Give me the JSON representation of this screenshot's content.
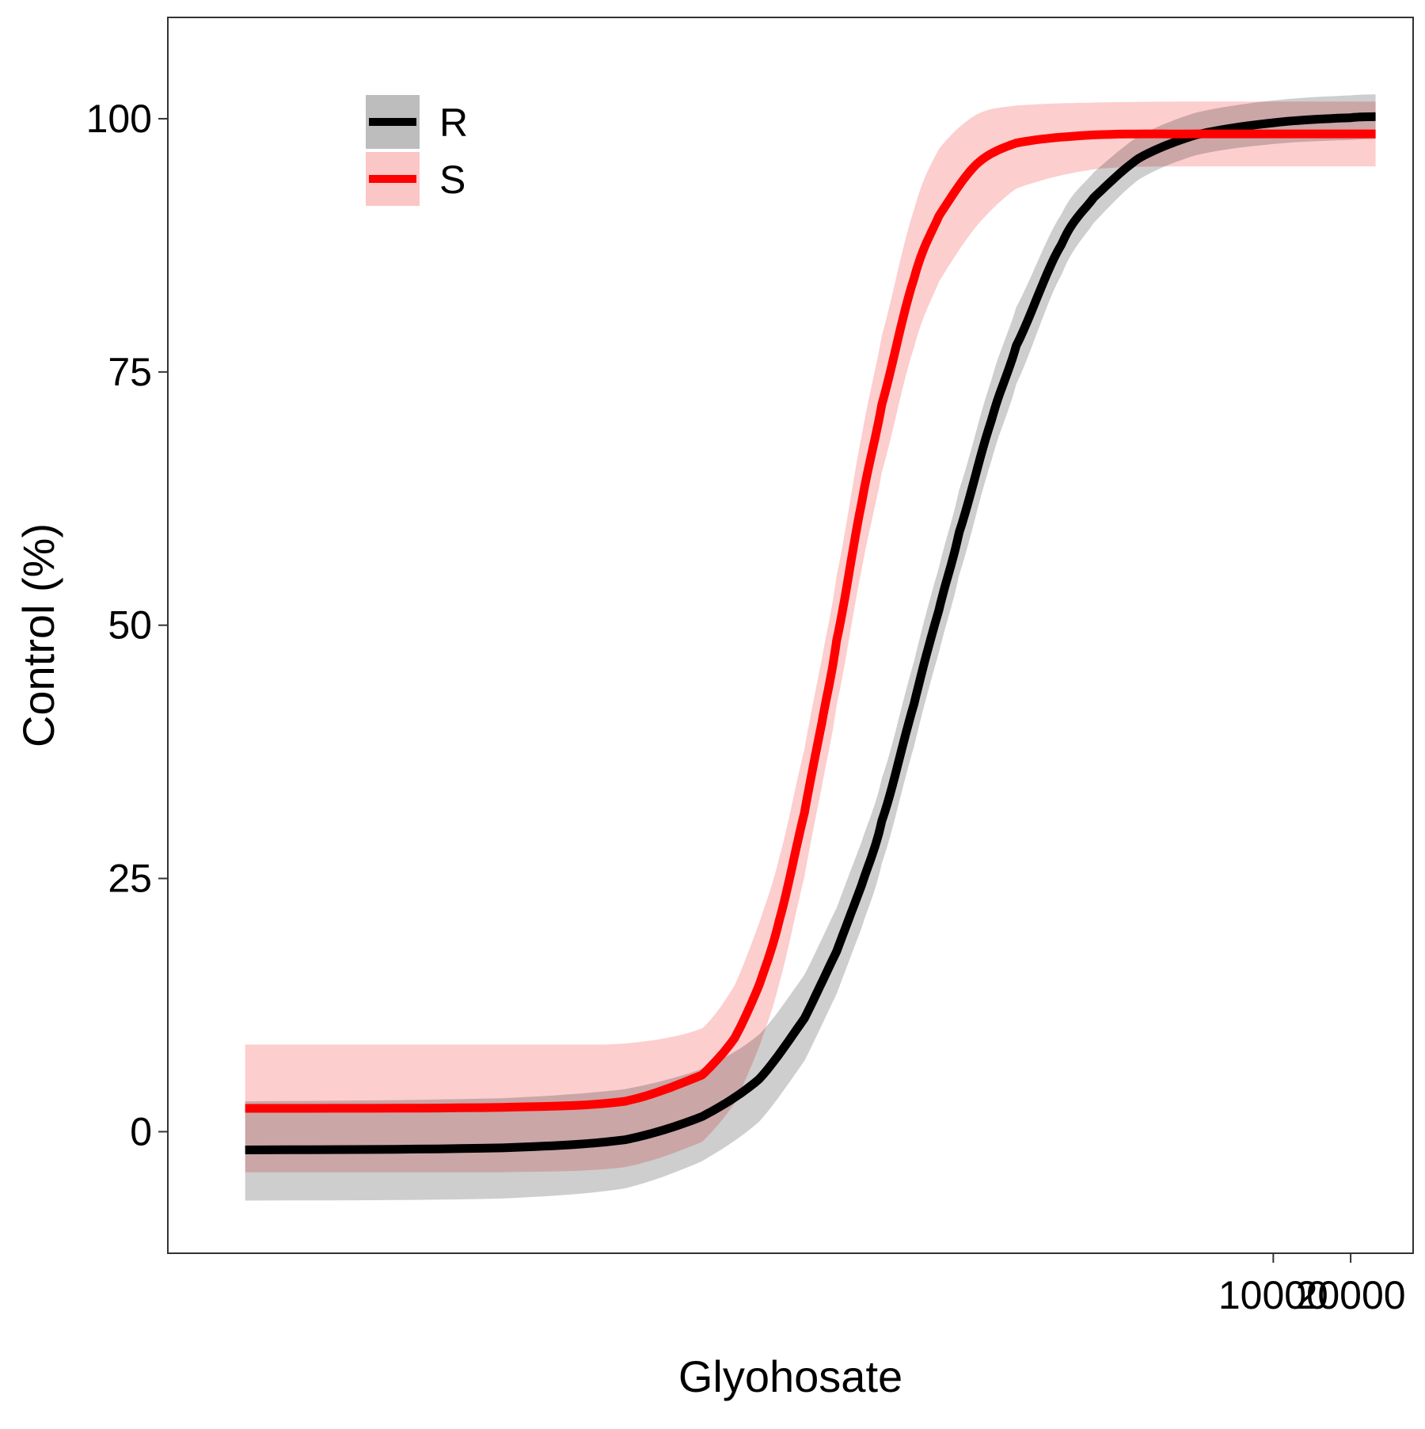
{
  "chart_data": {
    "type": "line",
    "title": "",
    "xlabel": "Glyohosate",
    "ylabel": "Control (%)",
    "x_scale": "log",
    "xlim": [
      0.5,
      35000
    ],
    "ylim": [
      -12,
      110
    ],
    "x_ticks": [
      10000,
      20000
    ],
    "x_tick_labels": [
      "10000",
      "20000"
    ],
    "y_ticks": [
      0,
      25,
      50,
      75,
      100
    ],
    "y_tick_labels": [
      "0",
      "25",
      "50",
      "75",
      "100"
    ],
    "grid": false,
    "legend_position": "top-left",
    "series": [
      {
        "name": "R",
        "color": "#000000",
        "band_color": "#bdbdbd",
        "x": [
          1,
          10,
          30,
          60,
          100,
          150,
          200,
          250,
          300,
          400,
          500,
          600,
          800,
          1000,
          1500,
          2000,
          3000,
          5000,
          10000,
          20000,
          25000
        ],
        "y": [
          -1.8,
          -1.6,
          -0.8,
          1.5,
          5.2,
          11.2,
          17.8,
          24.3,
          30.7,
          42.2,
          51.5,
          59.2,
          70.2,
          77.6,
          87.6,
          92.2,
          96.1,
          98.4,
          99.6,
          100.1,
          100.2
        ],
        "lower": [
          -6.8,
          -6.6,
          -5.6,
          -2.9,
          1.0,
          7.0,
          13.6,
          20.1,
          26.5,
          38.0,
          47.3,
          55.0,
          66.2,
          73.8,
          84.6,
          89.7,
          94.0,
          96.4,
          97.5,
          97.9,
          98.0
        ],
        "upper": [
          3.0,
          3.3,
          4.2,
          6.2,
          9.6,
          15.5,
          22.1,
          28.6,
          34.9,
          46.4,
          55.7,
          63.4,
          74.2,
          81.4,
          90.6,
          94.7,
          98.3,
          100.6,
          101.8,
          102.3,
          102.4
        ]
      },
      {
        "name": "S",
        "color": "#ff0000",
        "band_color": "#fbc6c6",
        "x": [
          1,
          10,
          30,
          60,
          80,
          100,
          120,
          150,
          175,
          200,
          250,
          300,
          400,
          500,
          700,
          1000,
          2000,
          5000,
          10000,
          25000
        ],
        "y": [
          2.3,
          2.4,
          3.0,
          5.6,
          9.2,
          14.5,
          21.0,
          31.5,
          40.3,
          48.5,
          62.0,
          71.8,
          84.2,
          90.4,
          95.5,
          97.6,
          98.4,
          98.5,
          98.5,
          98.5
        ],
        "lower": [
          -4.0,
          -4.0,
          -3.5,
          -1.0,
          2.8,
          8.4,
          14.8,
          25.2,
          34.0,
          42.1,
          55.4,
          65.1,
          77.4,
          83.9,
          89.4,
          93.1,
          95.0,
          95.3,
          95.3,
          95.3
        ],
        "upper": [
          8.6,
          8.6,
          8.7,
          10.2,
          14.4,
          20.6,
          27.2,
          37.8,
          46.6,
          54.9,
          68.6,
          78.6,
          91.0,
          97.0,
          100.4,
          101.3,
          101.6,
          101.7,
          101.7,
          101.7
        ]
      }
    ]
  }
}
